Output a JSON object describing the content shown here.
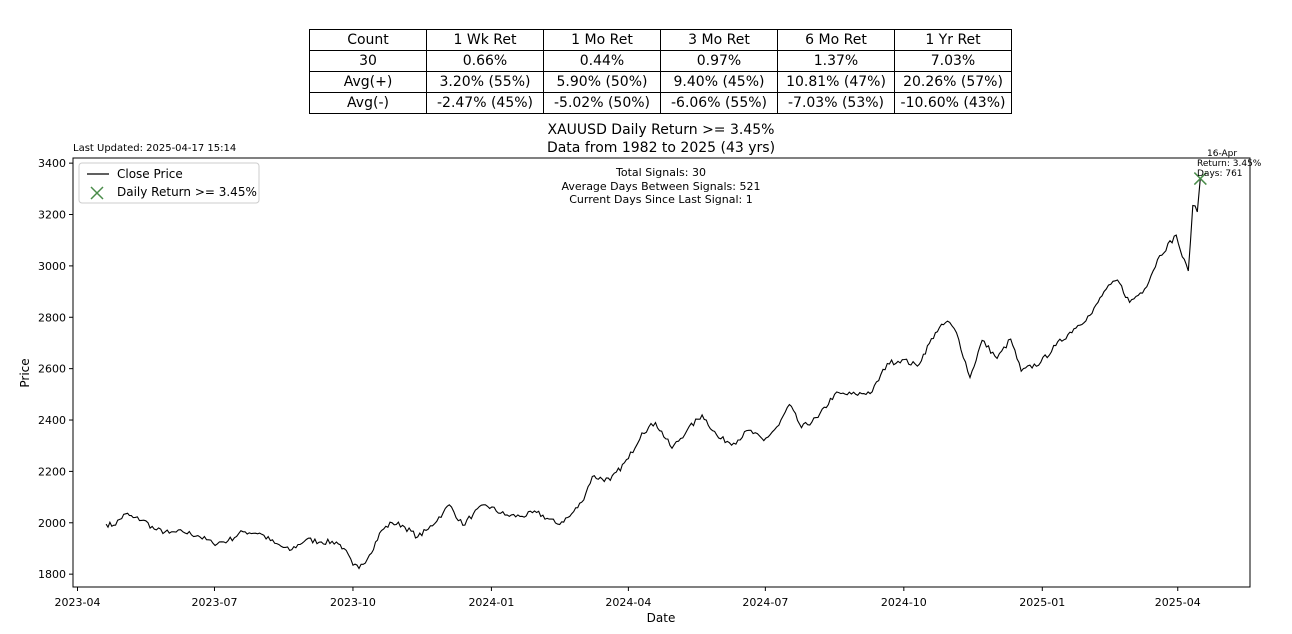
{
  "table": {
    "header": [
      "Count",
      "1 Wk Ret",
      "1 Mo Ret",
      "3 Mo Ret",
      "6 Mo Ret",
      "1 Yr Ret"
    ],
    "rows": [
      [
        "30",
        "0.66%",
        "0.44%",
        "0.97%",
        "1.37%",
        "7.03%"
      ],
      [
        "Avg(+)",
        "3.20% (55%)",
        "5.90% (50%)",
        "9.40% (45%)",
        "10.81% (47%)",
        "20.26% (57%)"
      ],
      [
        "Avg(-)",
        "-2.47% (45%)",
        "-5.02% (50%)",
        "-6.06% (55%)",
        "-7.03% (53%)",
        "-10.60% (43%)"
      ]
    ]
  },
  "chart_data": {
    "type": "line",
    "title": "XAUUSD Daily Return >= 3.45%",
    "subtitle": "Data from 1982 to 2025 (43 yrs)",
    "last_updated": "Last Updated: 2025-04-17 15:14",
    "xlabel": "Date",
    "ylabel": "Price",
    "ylim": [
      1750,
      3420
    ],
    "xlim": [
      "2023-03-29",
      "2025-05-19"
    ],
    "yticks": [
      1800,
      2000,
      2200,
      2400,
      2600,
      2800,
      3000,
      3200,
      3400
    ],
    "xticks": [
      "2023-04",
      "2023-07",
      "2023-10",
      "2024-01",
      "2024-04",
      "2024-07",
      "2024-10",
      "2025-01",
      "2025-04"
    ],
    "grid": false,
    "legend": {
      "position": "top-left",
      "entries": [
        {
          "label": "Close Price",
          "kind": "line",
          "color": "#000000"
        },
        {
          "label": "Daily Return >= 3.45%",
          "kind": "x-marker",
          "color": "#4a8c4a"
        }
      ]
    },
    "stats_text": [
      "Total Signals: 30",
      "Average Days Between Signals: 521",
      "Current Days Since Last Signal: 1"
    ],
    "series": [
      {
        "name": "Close Price",
        "color": "#000000",
        "points": [
          [
            "2023-04-20",
            1995
          ],
          [
            "2023-04-25",
            1990
          ],
          [
            "2023-05-03",
            2035
          ],
          [
            "2023-05-08",
            2020
          ],
          [
            "2023-05-15",
            2010
          ],
          [
            "2023-05-22",
            1975
          ],
          [
            "2023-06-01",
            1960
          ],
          [
            "2023-06-10",
            1965
          ],
          [
            "2023-06-20",
            1950
          ],
          [
            "2023-06-30",
            1920
          ],
          [
            "2023-07-10",
            1930
          ],
          [
            "2023-07-20",
            1965
          ],
          [
            "2023-07-31",
            1960
          ],
          [
            "2023-08-10",
            1920
          ],
          [
            "2023-08-20",
            1892
          ],
          [
            "2023-08-31",
            1935
          ],
          [
            "2023-09-10",
            1925
          ],
          [
            "2023-09-20",
            1925
          ],
          [
            "2023-09-25",
            1900
          ],
          [
            "2023-10-01",
            1835
          ],
          [
            "2023-10-05",
            1822
          ],
          [
            "2023-10-12",
            1875
          ],
          [
            "2023-10-20",
            1970
          ],
          [
            "2023-10-27",
            2000
          ],
          [
            "2023-11-03",
            1990
          ],
          [
            "2023-11-13",
            1945
          ],
          [
            "2023-11-20",
            1975
          ],
          [
            "2023-11-30",
            2040
          ],
          [
            "2023-12-04",
            2070
          ],
          [
            "2023-12-13",
            1990
          ],
          [
            "2023-12-20",
            2035
          ],
          [
            "2023-12-28",
            2070
          ],
          [
            "2024-01-10",
            2030
          ],
          [
            "2024-01-20",
            2025
          ],
          [
            "2024-01-31",
            2040
          ],
          [
            "2024-02-14",
            1995
          ],
          [
            "2024-02-22",
            2025
          ],
          [
            "2024-03-01",
            2080
          ],
          [
            "2024-03-08",
            2180
          ],
          [
            "2024-03-20",
            2165
          ],
          [
            "2024-04-01",
            2250
          ],
          [
            "2024-04-10",
            2350
          ],
          [
            "2024-04-19",
            2390
          ],
          [
            "2024-04-30",
            2290
          ],
          [
            "2024-05-10",
            2360
          ],
          [
            "2024-05-20",
            2420
          ],
          [
            "2024-05-31",
            2330
          ],
          [
            "2024-06-10",
            2310
          ],
          [
            "2024-06-20",
            2360
          ],
          [
            "2024-06-30",
            2320
          ],
          [
            "2024-07-10",
            2380
          ],
          [
            "2024-07-17",
            2460
          ],
          [
            "2024-07-25",
            2370
          ],
          [
            "2024-08-05",
            2410
          ],
          [
            "2024-08-16",
            2500
          ],
          [
            "2024-08-30",
            2500
          ],
          [
            "2024-09-10",
            2510
          ],
          [
            "2024-09-20",
            2620
          ],
          [
            "2024-09-30",
            2635
          ],
          [
            "2024-10-10",
            2610
          ],
          [
            "2024-10-22",
            2740
          ],
          [
            "2024-10-30",
            2785
          ],
          [
            "2024-11-05",
            2740
          ],
          [
            "2024-11-14",
            2565
          ],
          [
            "2024-11-22",
            2710
          ],
          [
            "2024-12-02",
            2640
          ],
          [
            "2024-12-11",
            2715
          ],
          [
            "2024-12-18",
            2590
          ],
          [
            "2024-12-31",
            2625
          ],
          [
            "2025-01-10",
            2690
          ],
          [
            "2025-01-22",
            2755
          ],
          [
            "2025-02-03",
            2815
          ],
          [
            "2025-02-11",
            2900
          ],
          [
            "2025-02-20",
            2945
          ],
          [
            "2025-02-28",
            2858
          ],
          [
            "2025-03-10",
            2910
          ],
          [
            "2025-03-20",
            3040
          ],
          [
            "2025-03-31",
            3120
          ],
          [
            "2025-04-04",
            3035
          ],
          [
            "2025-04-08",
            2980
          ],
          [
            "2025-04-11",
            3235
          ],
          [
            "2025-04-14",
            3210
          ],
          [
            "2025-04-16",
            3340
          ]
        ]
      }
    ],
    "signals": [
      {
        "date": "2025-04-16",
        "value": 3340,
        "label": "16-Apr",
        "return_text": "Return: 3.45%",
        "days_text": "Days: 761"
      }
    ]
  }
}
